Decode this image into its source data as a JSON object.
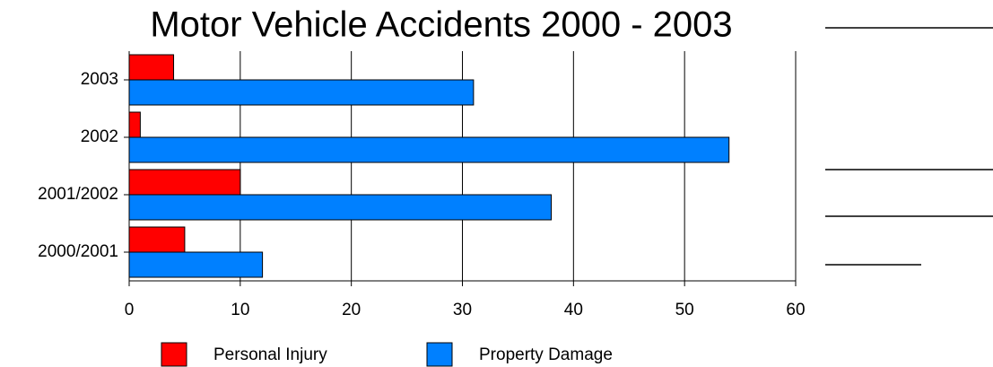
{
  "chart_data": {
    "type": "hbar",
    "title": "Motor Vehicle Accidents 2000 - 2003",
    "categories": [
      "2003",
      "2002",
      "2001/2002",
      "2000/2001"
    ],
    "series": [
      {
        "name": "Personal Injury",
        "color": "#ff0000",
        "values": [
          4,
          1,
          10,
          5
        ]
      },
      {
        "name": "Property Damage",
        "color": "#0080ff",
        "values": [
          31,
          54,
          38,
          12
        ]
      }
    ],
    "xlim": [
      0,
      60
    ],
    "xticks": [
      0,
      10,
      20,
      30,
      40,
      50,
      60
    ],
    "grid": true
  }
}
